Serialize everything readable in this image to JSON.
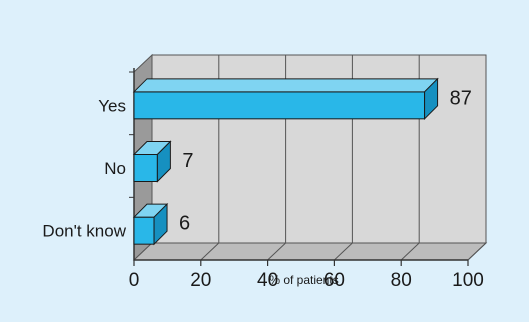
{
  "chart_data": {
    "type": "bar",
    "orientation": "horizontal",
    "style": "3d",
    "categories": [
      "Yes",
      "No",
      "Don't know"
    ],
    "values": [
      87,
      7,
      6
    ],
    "data_labels": [
      "87",
      "7",
      "6"
    ],
    "xlabel": "% of patients",
    "ylabel": "",
    "xlim": [
      0,
      100
    ],
    "xticks": [
      0,
      20,
      40,
      60,
      80,
      100
    ],
    "tick_labels": [
      "0",
      "20",
      "40",
      "60",
      "80",
      "100"
    ],
    "grid": true,
    "colors": {
      "background": "#ddf0fb",
      "plot_wall": "#d8d8d8",
      "plot_floor": "#bcbcbc",
      "bar_front": "#29b7e8",
      "bar_top": "#7fd4f2",
      "bar_side": "#1690c0"
    }
  }
}
